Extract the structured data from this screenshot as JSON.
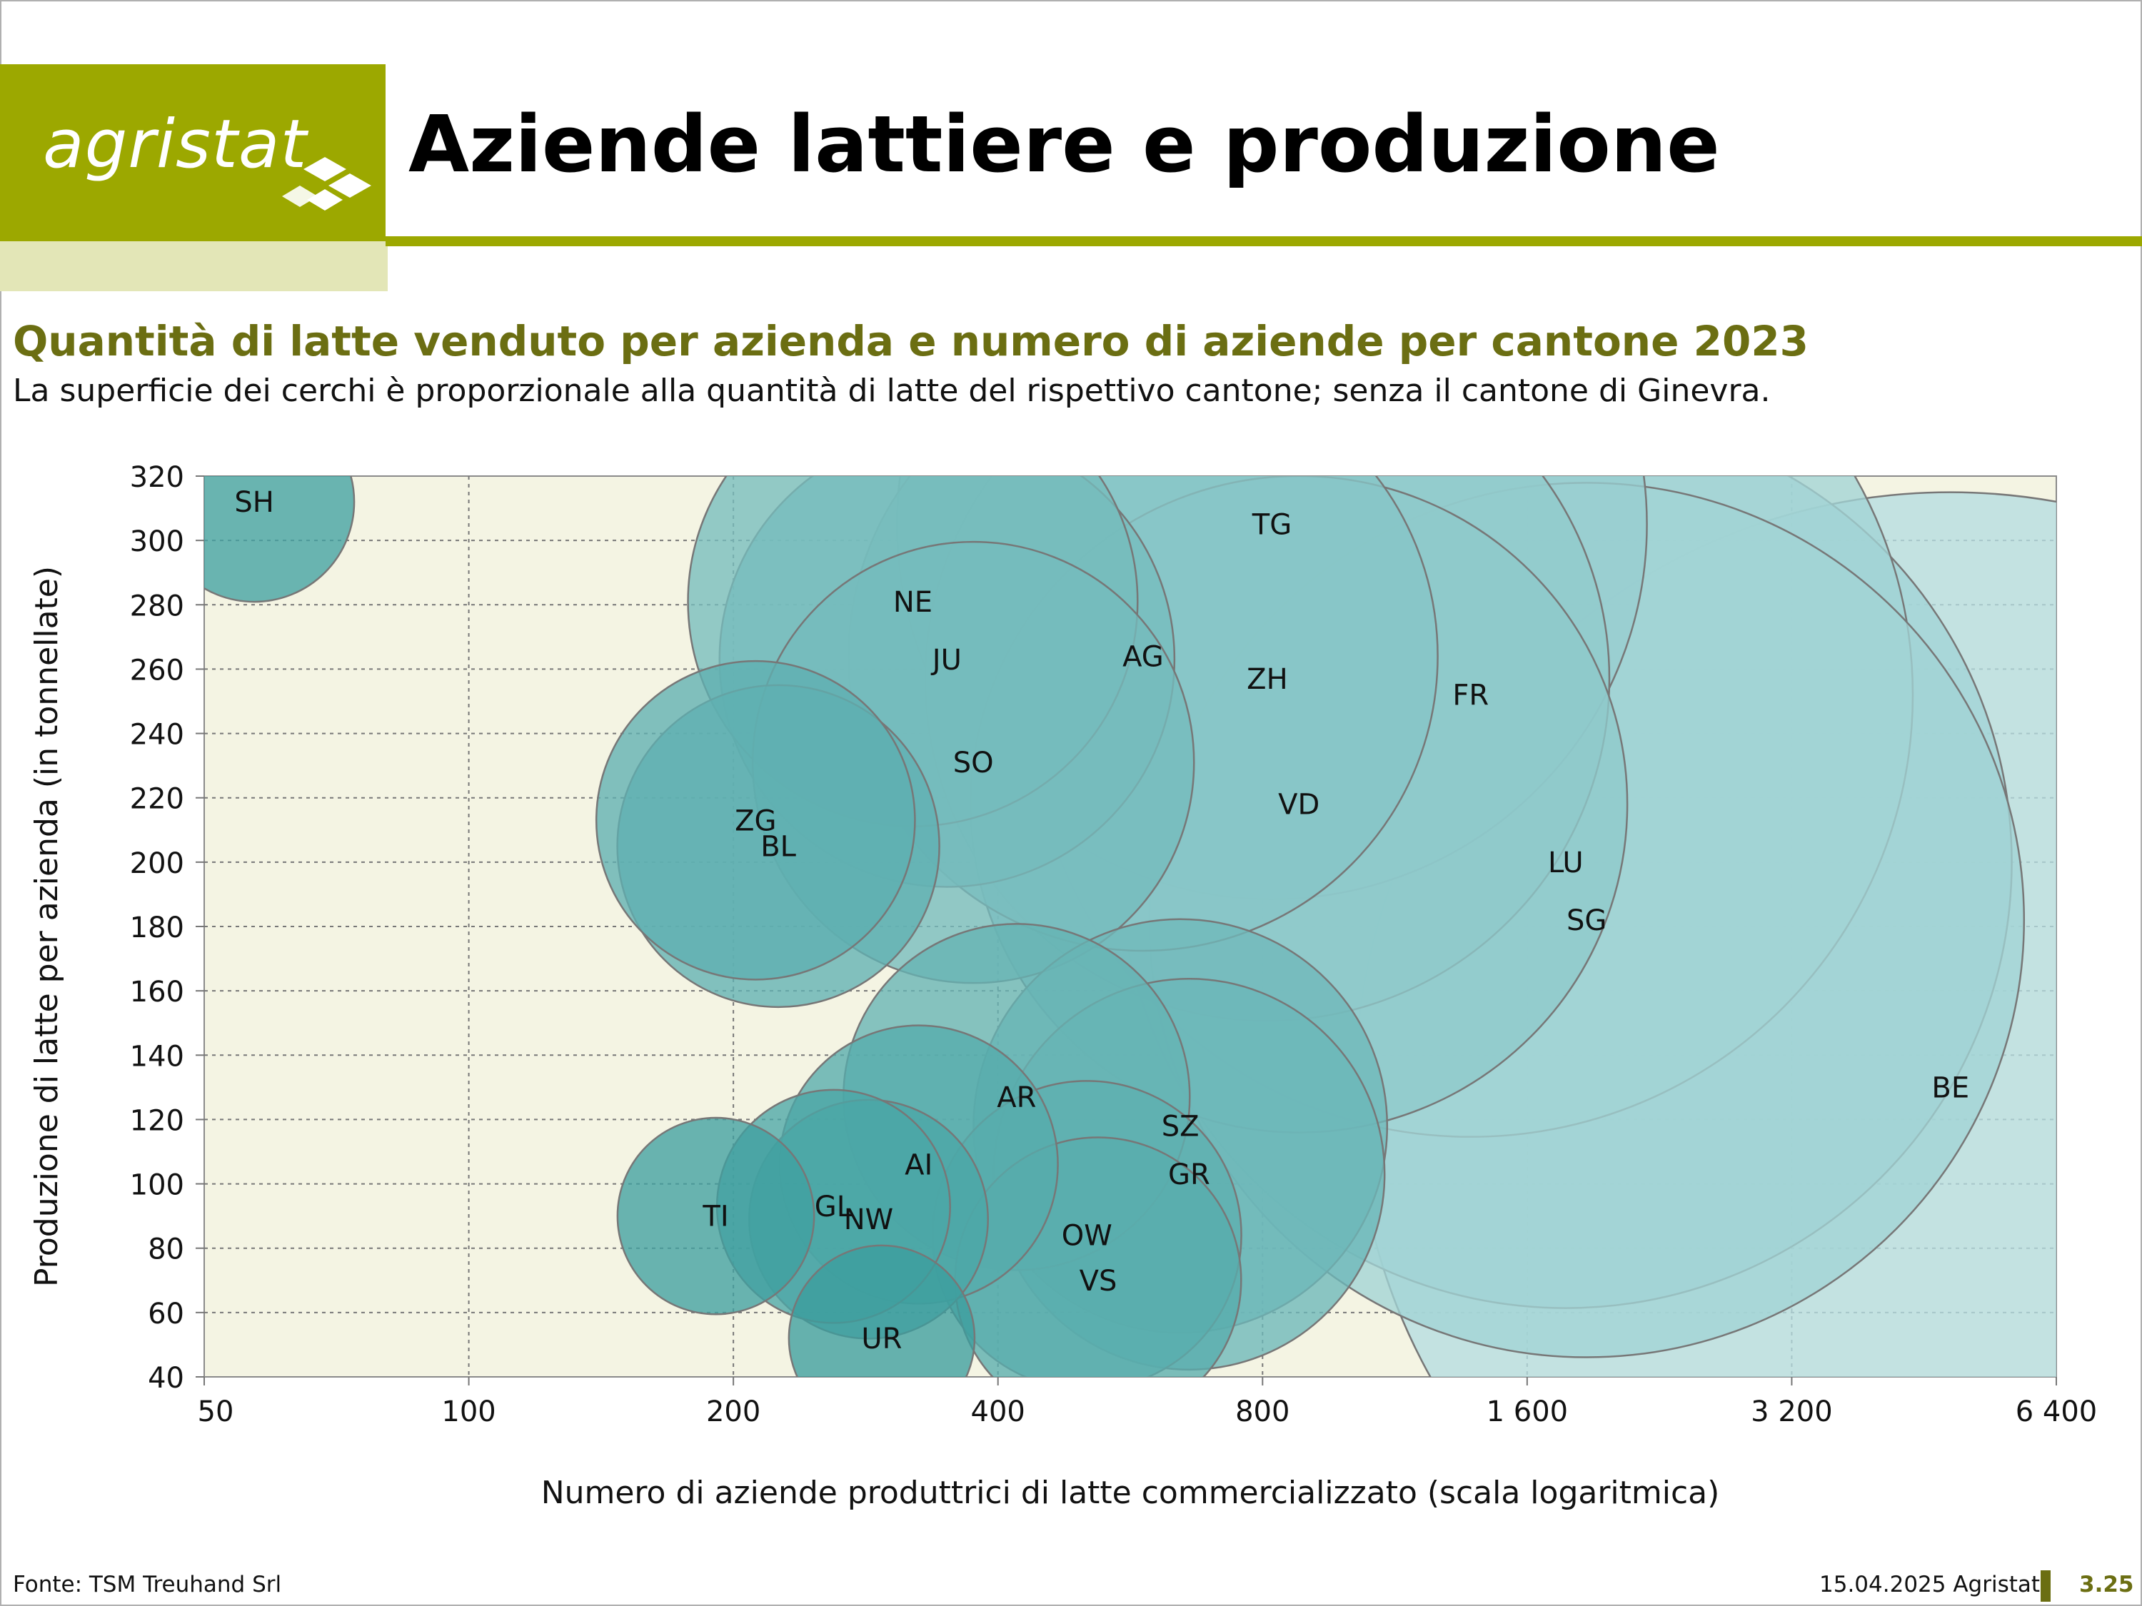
{
  "header": {
    "logo_text": "agristat",
    "title": "Aziende lattiere e produzione"
  },
  "chart_header": {
    "title": "Quantità di latte venduto per azienda e numero di aziende per cantone 2023",
    "subtitle": "La superficie dei cerchi è proporzionale alla quantità di latte del rispettivo cantone; senza il cantone di Ginevra."
  },
  "footer": {
    "source": "Fonte: TSM Treuhand Srl",
    "date": "15.04.2025 Agristat",
    "page": "3.25"
  },
  "colors": {
    "accent": "#9ca800",
    "accent_dark": "#6b6e12",
    "plot_bg": "#f4f4e3",
    "bubble_light": "#b5dde0",
    "bubble_dark": "#3c9e9e"
  },
  "chart_data": {
    "type": "bubble",
    "title": "Quantità di latte venduto per azienda e numero di aziende per cantone 2023",
    "xlabel": "Numero di aziende produttrici di latte commercializzato (scala logaritmica)",
    "ylabel": "Produzione di latte per azienda (in tonnellate)",
    "x_scale": "log2",
    "xlim": [
      50,
      6400
    ],
    "ylim": [
      40,
      320
    ],
    "x_ticks": [
      50,
      100,
      200,
      400,
      800,
      1600,
      3200,
      6400
    ],
    "x_tick_labels": [
      "50",
      "100",
      "200",
      "400",
      "800",
      "1 600",
      "3 200",
      "6 400"
    ],
    "y_ticks": [
      40,
      60,
      80,
      100,
      120,
      140,
      160,
      180,
      200,
      220,
      240,
      260,
      280,
      300,
      320
    ],
    "grid": true,
    "size_encoding": "area proportional to total milk quantity (aziende × produzione per azienda)",
    "points": [
      {
        "label": "SH",
        "x": 57,
        "y": 312
      },
      {
        "label": "TI",
        "x": 191,
        "y": 90
      },
      {
        "label": "ZG",
        "x": 212,
        "y": 213
      },
      {
        "label": "BL",
        "x": 225,
        "y": 205
      },
      {
        "label": "GL",
        "x": 260,
        "y": 93
      },
      {
        "label": "NW",
        "x": 285,
        "y": 89
      },
      {
        "label": "UR",
        "x": 295,
        "y": 52
      },
      {
        "label": "NE",
        "x": 320,
        "y": 281
      },
      {
        "label": "AI",
        "x": 325,
        "y": 106
      },
      {
        "label": "JU",
        "x": 350,
        "y": 263
      },
      {
        "label": "SO",
        "x": 375,
        "y": 231
      },
      {
        "label": "AR",
        "x": 420,
        "y": 127
      },
      {
        "label": "OW",
        "x": 505,
        "y": 84
      },
      {
        "label": "VS",
        "x": 520,
        "y": 70
      },
      {
        "label": "AG",
        "x": 585,
        "y": 264
      },
      {
        "label": "SZ",
        "x": 645,
        "y": 118
      },
      {
        "label": "GR",
        "x": 660,
        "y": 103
      },
      {
        "label": "TG",
        "x": 820,
        "y": 305
      },
      {
        "label": "ZH",
        "x": 810,
        "y": 257
      },
      {
        "label": "VD",
        "x": 880,
        "y": 218
      },
      {
        "label": "FR",
        "x": 1380,
        "y": 252
      },
      {
        "label": "LU",
        "x": 1770,
        "y": 200
      },
      {
        "label": "SG",
        "x": 1870,
        "y": 182
      },
      {
        "label": "BE",
        "x": 4850,
        "y": 130
      }
    ]
  }
}
